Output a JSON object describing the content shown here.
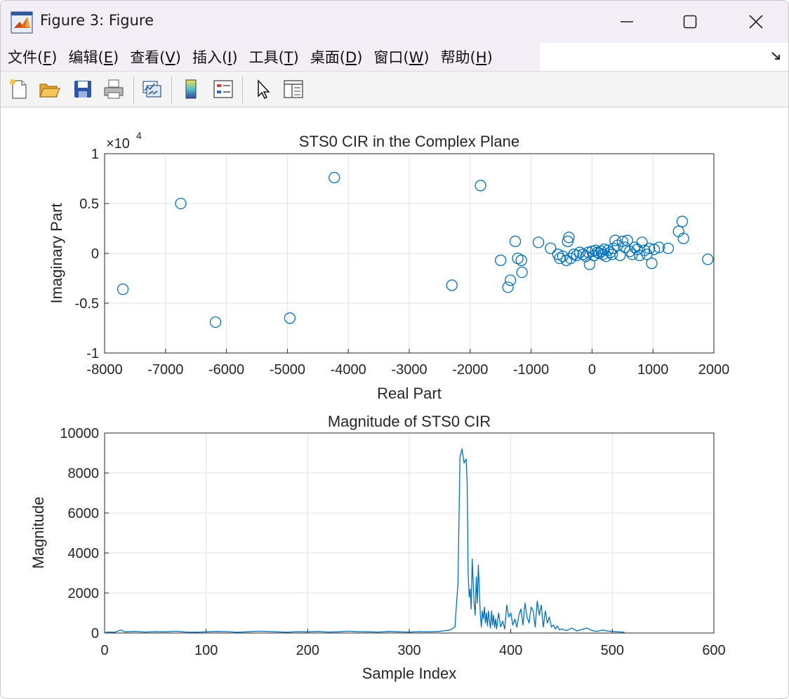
{
  "window": {
    "title": "Figure 3: Figure",
    "controls": [
      "minimize",
      "maximize",
      "close"
    ]
  },
  "menu": [
    {
      "label": "文件(",
      "mnemonic": "F",
      "suffix": ")"
    },
    {
      "label": "编辑(",
      "mnemonic": "E",
      "suffix": ")"
    },
    {
      "label": "查看(",
      "mnemonic": "V",
      "suffix": ")"
    },
    {
      "label": "插入(",
      "mnemonic": "I",
      "suffix": ")"
    },
    {
      "label": "工具(",
      "mnemonic": "T",
      "suffix": ")"
    },
    {
      "label": "桌面(",
      "mnemonic": "D",
      "suffix": ")"
    },
    {
      "label": "窗口(",
      "mnemonic": "W",
      "suffix": ")"
    },
    {
      "label": "帮助(",
      "mnemonic": "H",
      "suffix": ")"
    }
  ],
  "toolbar": [
    "new-figure-icon",
    "open-file-icon",
    "save-icon",
    "print-icon",
    "link-plot-icon",
    "colorbar-icon",
    "legend-icon",
    "pointer-icon",
    "property-inspector-icon"
  ],
  "colors": {
    "series": "#0072bd",
    "grid": "#e1e1e1",
    "axis": "#262626"
  },
  "chart_data": [
    {
      "type": "scatter",
      "title": "STS0 CIR in the Complex Plane",
      "xlabel": "Real Part",
      "ylabel": "Imaginary Part",
      "xlim": [
        -8000,
        2000
      ],
      "ylim": [
        -10000,
        10000
      ],
      "y_exponent": "4",
      "xticks": [
        -8000,
        -7000,
        -6000,
        -5000,
        -4000,
        -3000,
        -2000,
        -1000,
        0,
        1000,
        2000
      ],
      "yticks": [
        -1,
        -0.5,
        0,
        0.5,
        1
      ],
      "marker": "circle-open",
      "grid": true,
      "points": [
        [
          -7700,
          -3600
        ],
        [
          -6750,
          5000
        ],
        [
          -6180,
          -6900
        ],
        [
          -4960,
          -6500
        ],
        [
          -4230,
          7600
        ],
        [
          -2300,
          -3200
        ],
        [
          -1830,
          6800
        ],
        [
          -1500,
          -700
        ],
        [
          -1380,
          -3400
        ],
        [
          -1340,
          -2700
        ],
        [
          -1260,
          1200
        ],
        [
          -1220,
          -500
        ],
        [
          -1160,
          -700
        ],
        [
          -1150,
          -1900
        ],
        [
          -880,
          1100
        ],
        [
          -680,
          500
        ],
        [
          -560,
          -100
        ],
        [
          -530,
          -500
        ],
        [
          -480,
          -300
        ],
        [
          -420,
          -700
        ],
        [
          -400,
          1200
        ],
        [
          -380,
          1600
        ],
        [
          -350,
          -500
        ],
        [
          -300,
          -100
        ],
        [
          -250,
          -200
        ],
        [
          -200,
          100
        ],
        [
          -150,
          -100
        ],
        [
          -100,
          -300
        ],
        [
          -60,
          100
        ],
        [
          -40,
          -1100
        ],
        [
          0,
          200
        ],
        [
          30,
          -200
        ],
        [
          60,
          300
        ],
        [
          90,
          100
        ],
        [
          120,
          0
        ],
        [
          150,
          200
        ],
        [
          180,
          -100
        ],
        [
          200,
          400
        ],
        [
          230,
          -300
        ],
        [
          260,
          300
        ],
        [
          300,
          100
        ],
        [
          330,
          -100
        ],
        [
          350,
          500
        ],
        [
          380,
          1300
        ],
        [
          420,
          800
        ],
        [
          460,
          -200
        ],
        [
          500,
          1200
        ],
        [
          540,
          600
        ],
        [
          580,
          1300
        ],
        [
          620,
          200
        ],
        [
          660,
          -100
        ],
        [
          700,
          600
        ],
        [
          740,
          400
        ],
        [
          780,
          -200
        ],
        [
          820,
          1100
        ],
        [
          860,
          300
        ],
        [
          900,
          -100
        ],
        [
          940,
          500
        ],
        [
          980,
          -1000
        ],
        [
          1020,
          400
        ],
        [
          1100,
          600
        ],
        [
          1250,
          500
        ],
        [
          1420,
          2200
        ],
        [
          1480,
          3200
        ],
        [
          1500,
          1500
        ],
        [
          1900,
          -600
        ]
      ]
    },
    {
      "type": "line",
      "title": "Magnitude of STS0 CIR",
      "xlabel": "Sample Index",
      "ylabel": "Magnitude",
      "xlim": [
        0,
        600
      ],
      "ylim": [
        0,
        10000
      ],
      "xticks": [
        0,
        100,
        200,
        300,
        400,
        500,
        600
      ],
      "yticks": [
        0,
        2000,
        4000,
        6000,
        8000,
        10000
      ],
      "grid": true,
      "series": [
        {
          "x": [
            1,
            10,
            16,
            20,
            30,
            40,
            50,
            60,
            70,
            80,
            90,
            100,
            110,
            120,
            130,
            140,
            150,
            160,
            170,
            180,
            190,
            200,
            210,
            220,
            230,
            240,
            250,
            260,
            270,
            280,
            290,
            300,
            310,
            320,
            330,
            340,
            345,
            348,
            350,
            352,
            354,
            355,
            356,
            357,
            358,
            359,
            360,
            361,
            362,
            363,
            364,
            365,
            366,
            367,
            368,
            369,
            370,
            371,
            372,
            373,
            374,
            375,
            376,
            377,
            378,
            379,
            380,
            381,
            382,
            383,
            384,
            385,
            386,
            388,
            390,
            392,
            394,
            396,
            398,
            400,
            402,
            404,
            406,
            408,
            410,
            412,
            414,
            416,
            418,
            420,
            422,
            424,
            426,
            428,
            430,
            432,
            434,
            436,
            438,
            440,
            442,
            444,
            446,
            448,
            450,
            455,
            460,
            465,
            470,
            475,
            480,
            485,
            490,
            495,
            500,
            505,
            510,
            512
          ],
          "y": [
            50,
            40,
            150,
            60,
            80,
            50,
            70,
            60,
            90,
            50,
            40,
            60,
            80,
            70,
            40,
            60,
            90,
            80,
            60,
            40,
            70,
            60,
            80,
            50,
            60,
            90,
            70,
            60,
            50,
            80,
            60,
            50,
            70,
            60,
            80,
            150,
            300,
            2500,
            8800,
            9200,
            8500,
            8600,
            8700,
            7500,
            3000,
            1800,
            2200,
            1200,
            3700,
            2500,
            1400,
            900,
            2800,
            1500,
            3400,
            2200,
            900,
            300,
            1100,
            700,
            1300,
            500,
            1000,
            350,
            1100,
            600,
            250,
            1100,
            400,
            900,
            300,
            700,
            200,
            1000,
            300,
            600,
            200,
            1400,
            800,
            1000,
            400,
            700,
            300,
            900,
            1200,
            400,
            1500,
            800,
            500,
            1300,
            1100,
            300,
            1600,
            900,
            1400,
            300,
            1100,
            500,
            800,
            300,
            400,
            200,
            350,
            150,
            200,
            120,
            250,
            100,
            180,
            250,
            120,
            80,
            150,
            100,
            80,
            60,
            50,
            40
          ]
        }
      ]
    }
  ]
}
